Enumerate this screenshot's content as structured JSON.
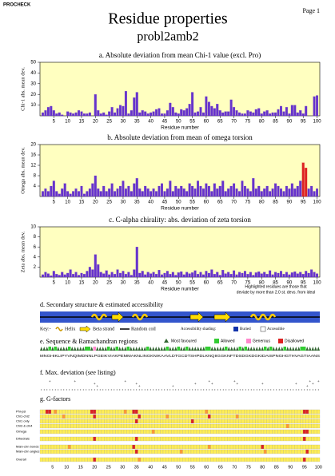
{
  "header": {
    "program": "PROCHECK",
    "page": "Page 1",
    "title": "Residue properties",
    "subtitle": "probl2amb2"
  },
  "chart_data": [
    {
      "type": "bar",
      "title": "a. Absolute deviation from mean Chi-1 value (excl. Pro)",
      "ylabel": "Chi-1 abs. mean dev.",
      "xlabel": "Residue number",
      "color": "#6633cc",
      "background": "#ffffc0",
      "x": [
        1,
        2,
        3,
        4,
        5,
        6,
        7,
        8,
        9,
        10,
        11,
        12,
        13,
        14,
        15,
        16,
        17,
        18,
        19,
        20,
        21,
        22,
        23,
        24,
        25,
        26,
        27,
        28,
        29,
        30,
        31,
        32,
        33,
        34,
        35,
        36,
        37,
        38,
        39,
        40,
        41,
        42,
        43,
        44,
        45,
        46,
        47,
        48,
        49,
        50,
        51,
        52,
        53,
        54,
        55,
        56,
        57,
        58,
        59,
        60,
        61,
        62,
        63,
        64,
        65,
        66,
        67,
        68,
        69,
        70,
        71,
        72,
        73,
        74,
        75,
        76,
        77,
        78,
        79,
        80,
        81,
        82,
        83,
        84,
        85,
        86,
        87,
        88,
        89,
        90,
        91,
        92,
        93,
        94,
        95,
        96,
        97,
        98,
        99,
        100
      ],
      "values": [
        3,
        5,
        8,
        9,
        5,
        2,
        3,
        1,
        0,
        4,
        3,
        2,
        3,
        5,
        4,
        2,
        2,
        3,
        0,
        20,
        5,
        2,
        3,
        1,
        4,
        8,
        3,
        7,
        10,
        9,
        23,
        2,
        5,
        17,
        22,
        3,
        5,
        4,
        2,
        3,
        4,
        6,
        7,
        2,
        2,
        5,
        12,
        8,
        3,
        2,
        6,
        5,
        7,
        11,
        22,
        3,
        4,
        8,
        3,
        18,
        13,
        9,
        7,
        11,
        5,
        3,
        4,
        4,
        15,
        8,
        5,
        3,
        2,
        2,
        5,
        4,
        3,
        6,
        7,
        2,
        4,
        5,
        2,
        3,
        3,
        6,
        9,
        4,
        8,
        2,
        10,
        10,
        3,
        5,
        2,
        9,
        0,
        0,
        18,
        19
      ],
      "xlim": [
        0,
        101
      ],
      "xticks": [
        5,
        10,
        15,
        20,
        25,
        30,
        35,
        40,
        45,
        50,
        55,
        60,
        65,
        70,
        75,
        80,
        85,
        90,
        95,
        100
      ],
      "ylim": [
        0,
        50
      ],
      "yticks": [
        10,
        20,
        30,
        40,
        50
      ]
    },
    {
      "type": "bar",
      "title": "b. Absolute deviation from mean of omega torsion",
      "ylabel": "Omega abs. mean dev.",
      "xlabel": "Residue number",
      "color": "#6633cc",
      "background": "#ffffc0",
      "highlight_color": "#dd2222",
      "highlighted": [
        95,
        96
      ],
      "x": [
        1,
        2,
        3,
        4,
        5,
        6,
        7,
        8,
        9,
        10,
        11,
        12,
        13,
        14,
        15,
        16,
        17,
        18,
        19,
        20,
        21,
        22,
        23,
        24,
        25,
        26,
        27,
        28,
        29,
        30,
        31,
        32,
        33,
        34,
        35,
        36,
        37,
        38,
        39,
        40,
        41,
        42,
        43,
        44,
        45,
        46,
        47,
        48,
        49,
        50,
        51,
        52,
        53,
        54,
        55,
        56,
        57,
        58,
        59,
        60,
        61,
        62,
        63,
        64,
        65,
        66,
        67,
        68,
        69,
        70,
        71,
        72,
        73,
        74,
        75,
        76,
        77,
        78,
        79,
        80,
        81,
        82,
        83,
        84,
        85,
        86,
        87,
        88,
        89,
        90,
        91,
        92,
        93,
        94,
        95,
        96,
        97,
        98,
        99,
        100
      ],
      "values": [
        2,
        3,
        2,
        4,
        6,
        2,
        1,
        3,
        5,
        2,
        1,
        2,
        3,
        2,
        4,
        1,
        2,
        3,
        5,
        8,
        3,
        2,
        4,
        2,
        3,
        5,
        2,
        3,
        4,
        6,
        3,
        4,
        2,
        5,
        7,
        3,
        2,
        4,
        3,
        2,
        3,
        2,
        4,
        5,
        2,
        3,
        6,
        2,
        4,
        3,
        4,
        3,
        2,
        5,
        4,
        3,
        6,
        4,
        3,
        5,
        4,
        2,
        5,
        3,
        4,
        6,
        2,
        3,
        4,
        5,
        3,
        2,
        6,
        4,
        3,
        2,
        7,
        3,
        4,
        2,
        3,
        4,
        2,
        3,
        5,
        4,
        3,
        2,
        4,
        3,
        5,
        3,
        4,
        6,
        13,
        11,
        3,
        4,
        2,
        3
      ],
      "xlim": [
        0,
        101
      ],
      "xticks": [
        5,
        10,
        15,
        20,
        25,
        30,
        35,
        40,
        45,
        50,
        55,
        60,
        65,
        70,
        75,
        80,
        85,
        90,
        95,
        100
      ],
      "ylim": [
        0,
        20
      ],
      "yticks": [
        4,
        8,
        12,
        16,
        20
      ]
    },
    {
      "type": "bar",
      "title": "c. C-alpha chirality: abs. deviation of zeta torsion",
      "ylabel": "Zeta abs. mean dev.",
      "xlabel": "Residue number",
      "color": "#6633cc",
      "background": "#ffffc0",
      "note": [
        "Highlighted residues are those that",
        "deviate by more than 2.0 st. devs. from ideal"
      ],
      "x": [
        1,
        2,
        3,
        4,
        5,
        6,
        7,
        8,
        9,
        10,
        11,
        12,
        13,
        14,
        15,
        16,
        17,
        18,
        19,
        20,
        21,
        22,
        23,
        24,
        25,
        26,
        27,
        28,
        29,
        30,
        31,
        32,
        33,
        34,
        35,
        36,
        37,
        38,
        39,
        40,
        41,
        42,
        43,
        44,
        45,
        46,
        47,
        48,
        49,
        50,
        51,
        52,
        53,
        54,
        55,
        56,
        57,
        58,
        59,
        60,
        61,
        62,
        63,
        64,
        65,
        66,
        67,
        68,
        69,
        70,
        71,
        72,
        73,
        74,
        75,
        76,
        77,
        78,
        79,
        80,
        81,
        82,
        83,
        84,
        85,
        86,
        87,
        88,
        89,
        90,
        91,
        92,
        93,
        94,
        95,
        96,
        97,
        98,
        99,
        100
      ],
      "values": [
        0.5,
        1,
        0.7,
        0.3,
        1.2,
        0.6,
        0.4,
        1,
        0.5,
        0.8,
        1.5,
        0.6,
        1,
        0.4,
        0.8,
        0.6,
        1.2,
        2,
        1.5,
        4.5,
        2.5,
        1,
        0.7,
        1.3,
        0.5,
        1,
        0.6,
        1.5,
        0.8,
        1.2,
        0.6,
        1,
        0.4,
        1.5,
        6,
        0.8,
        1.2,
        0.5,
        1,
        0.7,
        1,
        0.6,
        1.4,
        0.5,
        0.8,
        1.2,
        0.6,
        1,
        0.4,
        0.9,
        1.1,
        0.5,
        1,
        0.7,
        0.9,
        1.3,
        0.6,
        1,
        0.5,
        1.2,
        0.8,
        1.5,
        0.6,
        1,
        0.4,
        1.4,
        0.7,
        1,
        0.6,
        1.3,
        0.5,
        1,
        0.8,
        1.2,
        0.6,
        1,
        0.4,
        0.9,
        1.1,
        0.7,
        1,
        0.6,
        1.3,
        0.5,
        1,
        0.8,
        1.2,
        0.6,
        1,
        0.5,
        0.9,
        1.1,
        0.7,
        1,
        0.6,
        1.2,
        0.8,
        1.5,
        1,
        0.7
      ],
      "xlim": [
        0,
        101
      ],
      "xticks": [
        5,
        10,
        15,
        20,
        25,
        30,
        35,
        40,
        45,
        50,
        55,
        60,
        65,
        70,
        75,
        80,
        85,
        90,
        95,
        100
      ],
      "ylim": [
        0,
        10
      ],
      "yticks": [
        2,
        4,
        6,
        8,
        10
      ]
    }
  ],
  "secondary": {
    "title": "d. Secondary structure & estimated accessibility",
    "key": "Key:-",
    "helix": "Helix",
    "strand": "Beta strand",
    "coil": "Random coil",
    "shading": "Accessibility shading:",
    "buried": "Buried",
    "accessible": "Accessible"
  },
  "sequence": {
    "title": "e. Sequence & Ramachandran regions",
    "favoured": "Most favoured",
    "allowed": "Allowed",
    "generous": "Generous",
    "disallowed": "Disallowed",
    "residues": "MNGHIKLIPYVNQIMDNNLPGEIKVIAKPEMMAKNLINGKNIKAAVLDTGCDTSHPDLKNQIIGGKNFTDSDGKDGKIDAISPNGHGTHVAGTIAANS"
  },
  "maxdev": {
    "title": "f. Max. deviation (see listing)"
  },
  "gfactors": {
    "title": "g. G-factors",
    "rows": [
      "Phi-psi",
      "Chi1-chi2",
      "Chi1 only",
      "Chi3 & chi4",
      "Omega",
      "Dihedrals",
      "Main-chn bonds",
      "Main-chn angles",
      "Overall"
    ],
    "axis": [
      5,
      10,
      15,
      20,
      25,
      30,
      35,
      40,
      45,
      50,
      55,
      60,
      65,
      70,
      75,
      80,
      85,
      90,
      95,
      100
    ]
  }
}
